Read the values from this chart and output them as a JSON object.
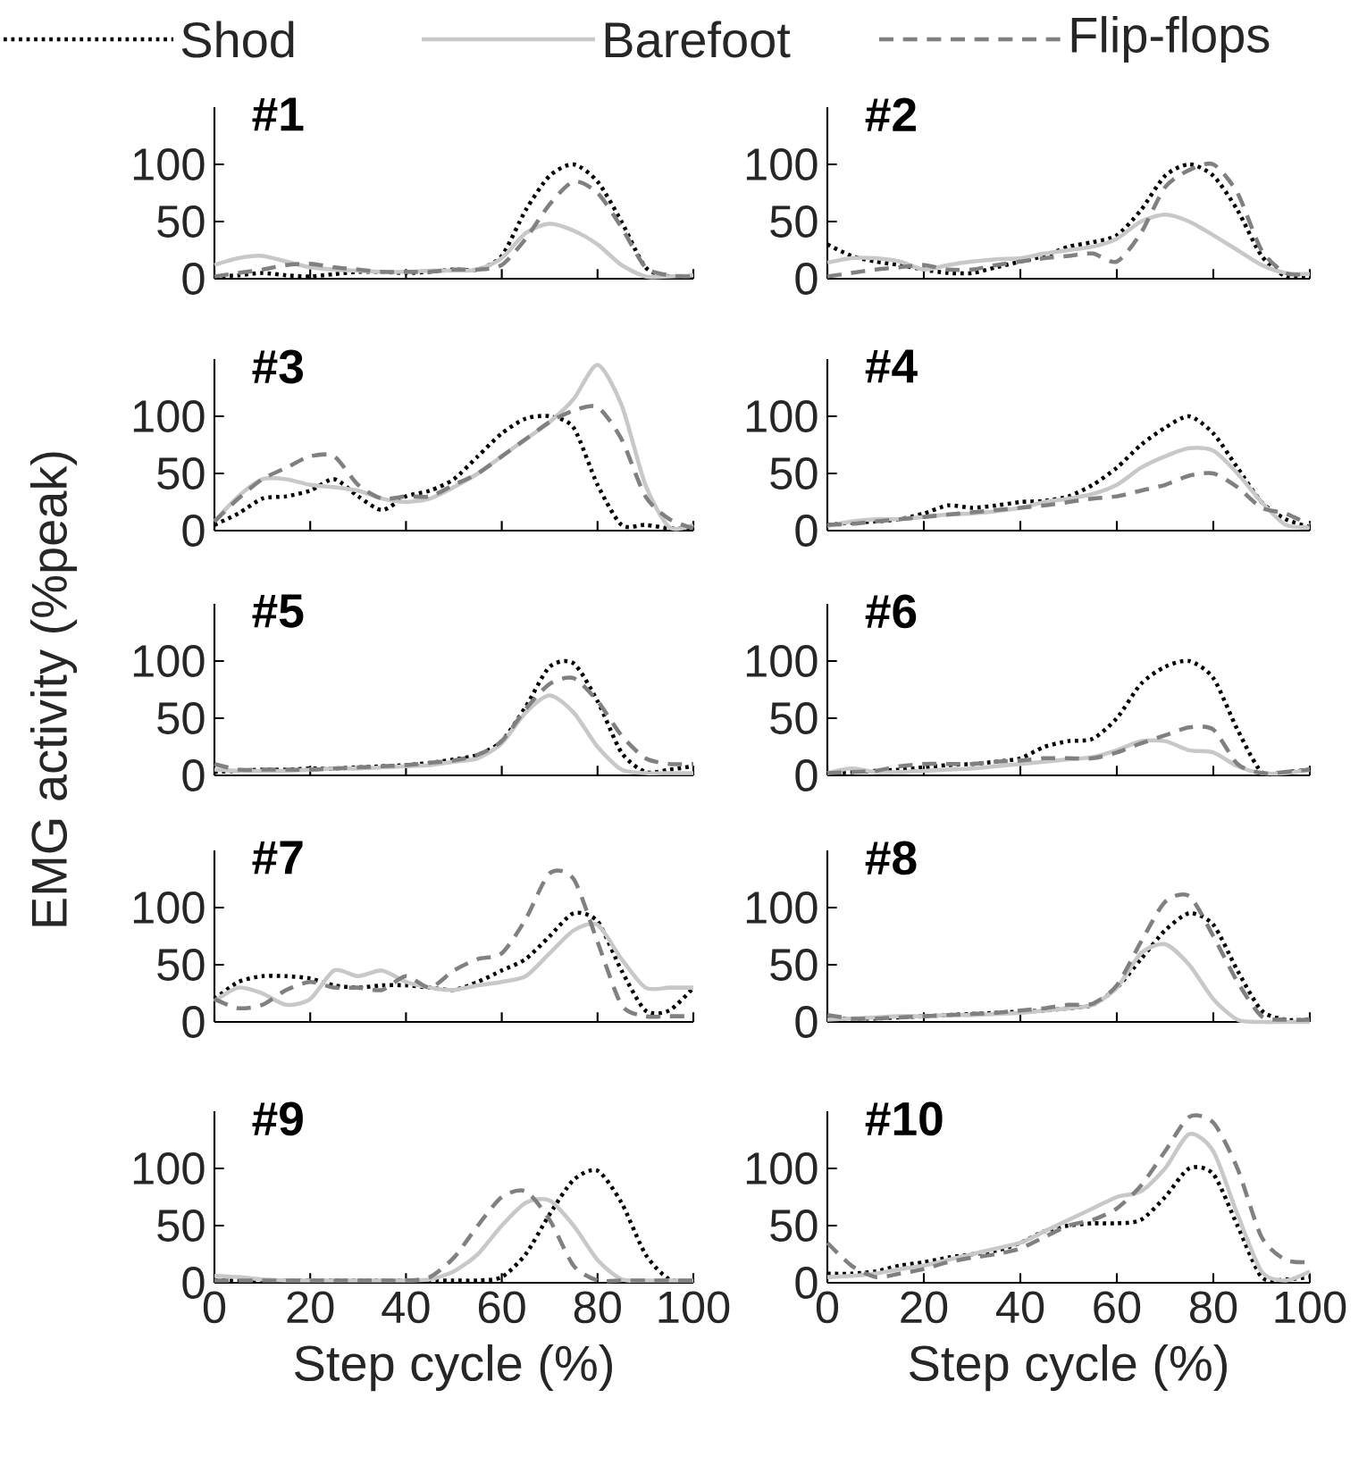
{
  "chart_data": [
    {
      "type": "line",
      "title": "#1",
      "legend": "top",
      "tick_labels": "y",
      "x": [
        0,
        5,
        10,
        15,
        20,
        25,
        30,
        35,
        40,
        45,
        50,
        55,
        60,
        65,
        70,
        75,
        80,
        85,
        90,
        95,
        100
      ],
      "xlim": [
        0,
        100
      ],
      "xticks": [
        0,
        20,
        40,
        60,
        80,
        100
      ],
      "ylim": [
        0,
        150
      ],
      "yticks": [
        0,
        50,
        100
      ],
      "series": [
        {
          "name": "Shod",
          "color": "#000000",
          "line_style": "dotted",
          "values": [
            2,
            3,
            5,
            3,
            2,
            4,
            6,
            6,
            5,
            6,
            8,
            8,
            20,
            60,
            90,
            100,
            85,
            50,
            10,
            2,
            2
          ]
        },
        {
          "name": "Barefoot",
          "color": "#c8c8c8",
          "line_style": "solid",
          "values": [
            12,
            18,
            20,
            15,
            10,
            8,
            7,
            6,
            6,
            7,
            7,
            8,
            18,
            40,
            48,
            42,
            30,
            12,
            2,
            2,
            3
          ]
        },
        {
          "name": "Flip-flops",
          "color": "#808080",
          "line_style": "dashed",
          "values": [
            2,
            5,
            8,
            12,
            13,
            10,
            8,
            6,
            6,
            6,
            8,
            8,
            12,
            35,
            65,
            85,
            75,
            45,
            10,
            3,
            2
          ]
        }
      ]
    },
    {
      "type": "line",
      "title": "#2",
      "tick_labels": "y",
      "x": [
        0,
        5,
        10,
        15,
        20,
        25,
        30,
        35,
        40,
        45,
        50,
        55,
        60,
        65,
        70,
        75,
        80,
        85,
        90,
        95,
        100
      ],
      "xlim": [
        0,
        100
      ],
      "xticks": [
        0,
        20,
        40,
        60,
        80,
        100
      ],
      "ylim": [
        0,
        150
      ],
      "yticks": [
        0,
        50,
        100
      ],
      "series": [
        {
          "color": "#000000",
          "line_style": "dotted",
          "values": [
            30,
            20,
            15,
            12,
            8,
            5,
            5,
            10,
            15,
            20,
            28,
            32,
            38,
            60,
            90,
            100,
            90,
            60,
            20,
            2,
            2
          ]
        },
        {
          "color": "#c8c8c8",
          "line_style": "solid",
          "values": [
            14,
            18,
            18,
            15,
            8,
            12,
            15,
            17,
            18,
            22,
            25,
            28,
            35,
            50,
            56,
            50,
            38,
            25,
            12,
            5,
            4
          ]
        },
        {
          "color": "#808080",
          "line_style": "dashed",
          "values": [
            2,
            5,
            8,
            10,
            12,
            8,
            8,
            12,
            15,
            18,
            20,
            22,
            15,
            40,
            80,
            95,
            100,
            75,
            25,
            5,
            4
          ]
        }
      ]
    },
    {
      "type": "line",
      "title": "#3",
      "tick_labels": "y",
      "x": [
        0,
        5,
        10,
        15,
        20,
        25,
        30,
        35,
        40,
        45,
        50,
        55,
        60,
        65,
        70,
        75,
        80,
        85,
        90,
        95,
        100
      ],
      "xlim": [
        0,
        100
      ],
      "xticks": [
        0,
        20,
        40,
        60,
        80,
        100
      ],
      "ylim": [
        0,
        150
      ],
      "yticks": [
        0,
        50,
        100
      ],
      "series": [
        {
          "color": "#000000",
          "line_style": "dotted",
          "values": [
            5,
            15,
            28,
            30,
            35,
            45,
            30,
            18,
            30,
            35,
            45,
            65,
            85,
            98,
            100,
            90,
            40,
            5,
            5,
            2,
            2
          ]
        },
        {
          "color": "#c8c8c8",
          "line_style": "solid",
          "values": [
            8,
            30,
            45,
            45,
            40,
            38,
            35,
            28,
            25,
            28,
            38,
            50,
            65,
            80,
            95,
            115,
            145,
            110,
            40,
            3,
            5
          ]
        },
        {
          "color": "#808080",
          "line_style": "dashed",
          "values": [
            8,
            28,
            45,
            55,
            65,
            65,
            40,
            28,
            30,
            30,
            40,
            50,
            65,
            80,
            95,
            105,
            108,
            80,
            30,
            10,
            2
          ]
        }
      ]
    },
    {
      "type": "line",
      "title": "#4",
      "tick_labels": "y",
      "x": [
        0,
        5,
        10,
        15,
        20,
        25,
        30,
        35,
        40,
        45,
        50,
        55,
        60,
        65,
        70,
        75,
        80,
        85,
        90,
        95,
        100
      ],
      "xlim": [
        0,
        100
      ],
      "xticks": [
        0,
        20,
        40,
        60,
        80,
        100
      ],
      "ylim": [
        0,
        150
      ],
      "yticks": [
        0,
        50,
        100
      ],
      "series": [
        {
          "color": "#000000",
          "line_style": "dotted",
          "values": [
            5,
            7,
            8,
            10,
            15,
            22,
            20,
            22,
            25,
            26,
            30,
            40,
            55,
            75,
            90,
            100,
            85,
            55,
            25,
            10,
            3
          ]
        },
        {
          "color": "#c8c8c8",
          "line_style": "solid",
          "values": [
            4,
            8,
            10,
            10,
            12,
            14,
            15,
            17,
            20,
            25,
            28,
            32,
            40,
            55,
            65,
            72,
            70,
            50,
            25,
            5,
            3
          ]
        },
        {
          "color": "#808080",
          "line_style": "dashed",
          "values": [
            5,
            6,
            8,
            10,
            12,
            14,
            16,
            18,
            20,
            22,
            25,
            28,
            30,
            35,
            40,
            48,
            50,
            38,
            20,
            15,
            5
          ]
        }
      ]
    },
    {
      "type": "line",
      "title": "#5",
      "ylabel": "EMG activity (%peak)",
      "tick_labels": "y",
      "x": [
        0,
        5,
        10,
        15,
        20,
        25,
        30,
        35,
        40,
        45,
        50,
        55,
        60,
        65,
        70,
        75,
        80,
        85,
        90,
        95,
        100
      ],
      "xlim": [
        0,
        100
      ],
      "xticks": [
        0,
        20,
        40,
        60,
        80,
        100
      ],
      "ylim": [
        0,
        150
      ],
      "yticks": [
        0,
        50,
        100
      ],
      "series": [
        {
          "color": "#000000",
          "line_style": "dotted",
          "values": [
            3,
            4,
            5,
            5,
            6,
            6,
            7,
            8,
            9,
            11,
            14,
            18,
            30,
            60,
            95,
            98,
            65,
            20,
            3,
            5,
            8
          ]
        },
        {
          "color": "#c8c8c8",
          "line_style": "solid",
          "values": [
            5,
            4,
            4,
            4,
            5,
            6,
            6,
            7,
            8,
            9,
            12,
            15,
            28,
            55,
            70,
            55,
            25,
            5,
            2,
            2,
            2
          ]
        },
        {
          "color": "#808080",
          "line_style": "dashed",
          "values": [
            10,
            5,
            5,
            5,
            5,
            6,
            7,
            8,
            9,
            11,
            13,
            18,
            30,
            58,
            80,
            85,
            65,
            35,
            15,
            10,
            10
          ]
        }
      ]
    },
    {
      "type": "line",
      "title": "#6",
      "tick_labels": "y",
      "x": [
        0,
        5,
        10,
        15,
        20,
        25,
        30,
        35,
        40,
        45,
        50,
        55,
        60,
        65,
        70,
        75,
        80,
        85,
        90,
        95,
        100
      ],
      "xlim": [
        0,
        100
      ],
      "xticks": [
        0,
        20,
        40,
        60,
        80,
        100
      ],
      "ylim": [
        0,
        150
      ],
      "yticks": [
        0,
        50,
        100
      ],
      "series": [
        {
          "color": "#000000",
          "line_style": "dotted",
          "values": [
            2,
            3,
            4,
            5,
            7,
            9,
            10,
            12,
            15,
            25,
            30,
            32,
            50,
            80,
            95,
            100,
            85,
            40,
            3,
            3,
            5
          ]
        },
        {
          "color": "#c8c8c8",
          "line_style": "solid",
          "values": [
            2,
            6,
            3,
            3,
            4,
            5,
            6,
            8,
            10,
            12,
            14,
            16,
            22,
            30,
            30,
            22,
            20,
            8,
            2,
            2,
            5
          ]
        },
        {
          "color": "#808080",
          "line_style": "dashed",
          "values": [
            2,
            3,
            4,
            8,
            10,
            10,
            10,
            12,
            13,
            15,
            15,
            15,
            20,
            28,
            35,
            42,
            40,
            10,
            2,
            3,
            5
          ]
        }
      ]
    },
    {
      "type": "line",
      "title": "#7",
      "tick_labels": "y",
      "x": [
        0,
        5,
        10,
        15,
        20,
        25,
        30,
        35,
        40,
        45,
        50,
        55,
        60,
        65,
        70,
        75,
        80,
        85,
        90,
        95,
        100
      ],
      "xlim": [
        0,
        100
      ],
      "xticks": [
        0,
        20,
        40,
        60,
        80,
        100
      ],
      "ylim": [
        0,
        150
      ],
      "yticks": [
        0,
        50,
        100
      ],
      "series": [
        {
          "color": "#000000",
          "line_style": "dotted",
          "values": [
            20,
            35,
            40,
            40,
            38,
            32,
            30,
            32,
            32,
            30,
            28,
            35,
            45,
            55,
            75,
            95,
            88,
            45,
            10,
            10,
            30
          ]
        },
        {
          "color": "#c8c8c8",
          "line_style": "solid",
          "values": [
            18,
            30,
            25,
            15,
            20,
            45,
            40,
            45,
            35,
            30,
            28,
            32,
            35,
            40,
            60,
            80,
            85,
            55,
            30,
            30,
            30
          ]
        },
        {
          "color": "#808080",
          "line_style": "dashed",
          "values": [
            20,
            12,
            15,
            28,
            35,
            30,
            30,
            28,
            40,
            30,
            45,
            55,
            60,
            90,
            130,
            125,
            70,
            15,
            5,
            5,
            5
          ]
        }
      ]
    },
    {
      "type": "line",
      "title": "#8",
      "tick_labels": "y",
      "x": [
        0,
        5,
        10,
        15,
        20,
        25,
        30,
        35,
        40,
        45,
        50,
        55,
        60,
        65,
        70,
        75,
        80,
        85,
        90,
        95,
        100
      ],
      "xlim": [
        0,
        100
      ],
      "xticks": [
        0,
        20,
        40,
        60,
        80,
        100
      ],
      "ylim": [
        0,
        150
      ],
      "yticks": [
        0,
        50,
        100
      ],
      "series": [
        {
          "color": "#000000",
          "line_style": "dotted",
          "values": [
            3,
            3,
            3,
            4,
            5,
            6,
            7,
            8,
            9,
            10,
            12,
            15,
            30,
            55,
            80,
            95,
            85,
            45,
            10,
            2,
            2
          ]
        },
        {
          "color": "#c8c8c8",
          "line_style": "solid",
          "values": [
            2,
            3,
            4,
            5,
            5,
            6,
            6,
            7,
            8,
            10,
            12,
            15,
            30,
            60,
            68,
            50,
            20,
            2,
            0,
            0,
            0
          ]
        },
        {
          "color": "#808080",
          "line_style": "dashed",
          "values": [
            6,
            3,
            3,
            4,
            5,
            6,
            7,
            8,
            10,
            12,
            15,
            16,
            32,
            70,
            105,
            110,
            75,
            35,
            5,
            2,
            2
          ]
        }
      ]
    },
    {
      "type": "line",
      "title": "#9",
      "xlabel": "Step cycle (%)",
      "x": [
        0,
        5,
        10,
        15,
        20,
        25,
        30,
        35,
        40,
        45,
        50,
        55,
        60,
        65,
        70,
        75,
        80,
        85,
        90,
        95,
        100
      ],
      "xlim": [
        0,
        100
      ],
      "xticks": [
        0,
        20,
        40,
        60,
        80,
        100
      ],
      "ylim": [
        0,
        150
      ],
      "yticks": [
        0,
        50,
        100
      ],
      "series": [
        {
          "color": "#000000",
          "line_style": "dotted",
          "values": [
            2,
            2,
            2,
            2,
            2,
            2,
            2,
            2,
            2,
            2,
            2,
            2,
            5,
            25,
            60,
            90,
            98,
            70,
            25,
            3,
            2
          ]
        },
        {
          "color": "#c8c8c8",
          "line_style": "solid",
          "values": [
            6,
            5,
            3,
            2,
            2,
            2,
            2,
            2,
            2,
            3,
            10,
            25,
            50,
            70,
            72,
            50,
            20,
            3,
            2,
            2,
            2
          ]
        },
        {
          "color": "#808080",
          "line_style": "dashed",
          "values": [
            2,
            2,
            2,
            2,
            2,
            2,
            2,
            2,
            2,
            5,
            22,
            50,
            75,
            80,
            55,
            15,
            2,
            2,
            2,
            2,
            2
          ]
        }
      ]
    },
    {
      "type": "line",
      "title": "#10",
      "xlabel": "Step cycle (%)",
      "x": [
        0,
        5,
        10,
        15,
        20,
        25,
        30,
        35,
        40,
        45,
        50,
        55,
        60,
        65,
        70,
        75,
        80,
        85,
        90,
        95,
        100
      ],
      "xlim": [
        0,
        100
      ],
      "xticks": [
        0,
        20,
        40,
        60,
        80,
        100
      ],
      "ylim": [
        0,
        150
      ],
      "yticks": [
        0,
        50,
        100
      ],
      "series": [
        {
          "color": "#000000",
          "line_style": "dotted",
          "values": [
            8,
            8,
            10,
            15,
            18,
            22,
            25,
            28,
            35,
            45,
            50,
            52,
            52,
            55,
            75,
            100,
            95,
            50,
            5,
            3,
            5
          ]
        },
        {
          "color": "#c8c8c8",
          "line_style": "solid",
          "values": [
            5,
            6,
            8,
            12,
            15,
            20,
            25,
            30,
            35,
            45,
            55,
            65,
            75,
            80,
            100,
            130,
            115,
            60,
            10,
            2,
            10
          ]
        },
        {
          "color": "#808080",
          "line_style": "dashed",
          "values": [
            35,
            15,
            5,
            8,
            12,
            18,
            22,
            25,
            30,
            40,
            50,
            55,
            65,
            85,
            115,
            145,
            140,
            100,
            40,
            20,
            18
          ]
        }
      ]
    }
  ]
}
